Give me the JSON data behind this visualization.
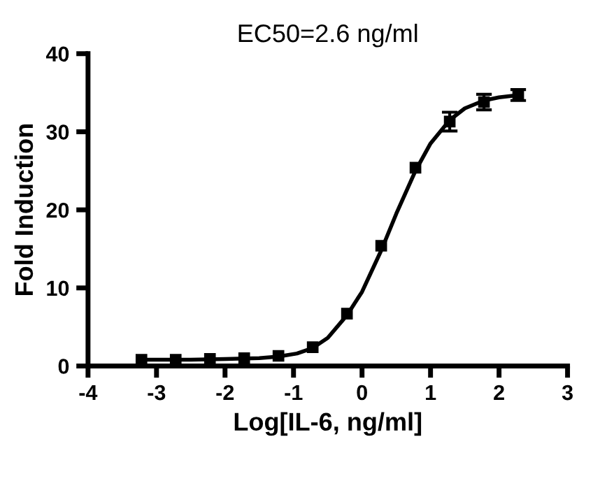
{
  "chart_data": {
    "type": "scatter",
    "title": "EC50=2.6 ng/ml",
    "xlabel": "Log[IL-6, ng/ml]",
    "ylabel": "Fold Induction",
    "x": [
      -3.22,
      -2.72,
      -2.22,
      -1.72,
      -1.22,
      -0.72,
      -0.22,
      0.28,
      0.78,
      1.28,
      1.78,
      2.28
    ],
    "series": [
      {
        "color": "#000000",
        "marker": "square",
        "values": [
          0.8,
          0.8,
          0.9,
          1.0,
          1.3,
          2.4,
          6.7,
          15.4,
          25.4,
          31.3,
          33.8,
          34.7
        ],
        "errors": [
          null,
          null,
          null,
          null,
          null,
          null,
          null,
          null,
          null,
          1.2,
          1.0,
          0.7
        ]
      },
      {
        "type": "line",
        "color": "#000000",
        "line_style": "solid",
        "x": [
          -3.22,
          -2.5,
          -2,
          -1.5,
          -1.22,
          -0.95,
          -0.72,
          -0.5,
          -0.22,
          0,
          0.28,
          0.5,
          0.78,
          1,
          1.28,
          1.5,
          1.78,
          2,
          2.28
        ],
        "values": [
          0.8,
          0.8,
          0.9,
          1.0,
          1.2,
          1.6,
          2.3,
          3.6,
          6.5,
          9.5,
          14.8,
          19.5,
          25.0,
          28.5,
          31.5,
          33.0,
          34.0,
          34.4,
          34.7
        ]
      }
    ],
    "xlim": [
      -4,
      3
    ],
    "xticks": [
      -4,
      -3,
      -2,
      -1,
      0,
      1,
      2,
      3
    ],
    "ylim": [
      0,
      40
    ],
    "yticks": [
      0,
      10,
      20,
      30,
      40
    ],
    "grid": false,
    "legend": false
  }
}
